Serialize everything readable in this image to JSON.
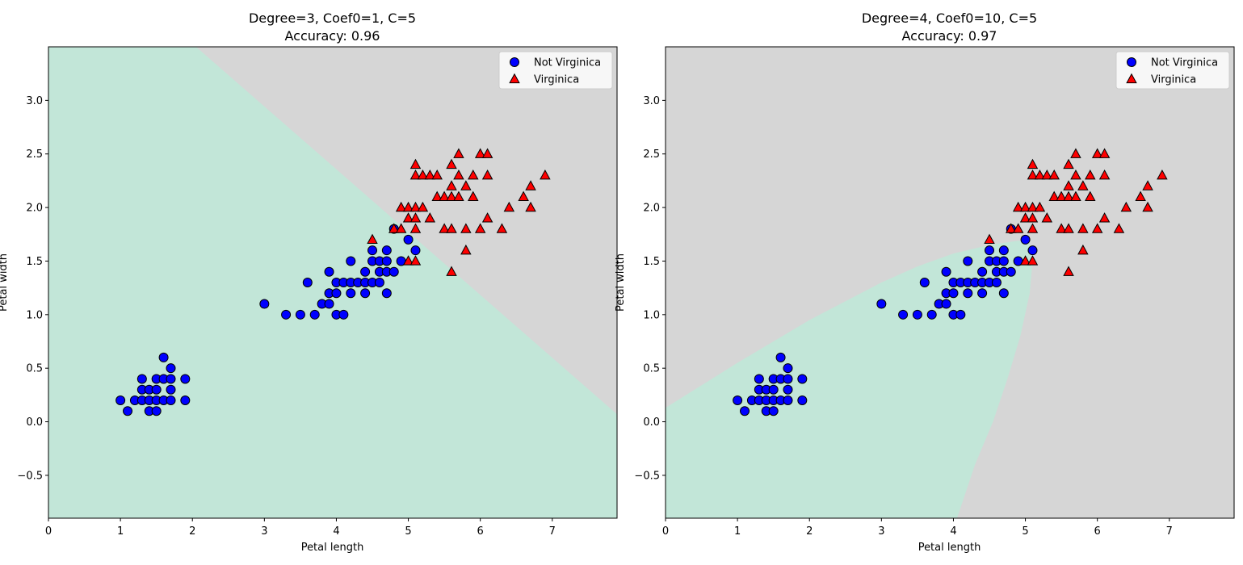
{
  "colors": {
    "region_not_virginica": "#c2e6d8",
    "region_virginica": "#d6d6d6",
    "not_virginica_marker": "#0000ff",
    "virginica_marker": "#ff0000",
    "marker_edge": "#000000"
  },
  "chart_data": [
    {
      "type": "scatter",
      "title": "Degree=3, Coef0=1, C=5",
      "subtitle": "Accuracy: 0.96",
      "xlabel": "Petal length",
      "ylabel": "Petal width",
      "xlim": [
        0,
        7.9
      ],
      "ylim": [
        -0.9,
        3.5
      ],
      "xticks": [
        0,
        1,
        2,
        3,
        4,
        5,
        6,
        7
      ],
      "yticks": [
        -0.5,
        0.0,
        0.5,
        1.0,
        1.5,
        2.0,
        2.5,
        3.0
      ],
      "legend_position": "top-right",
      "decision_boundary": {
        "shape": "line",
        "points": [
          [
            2.05,
            3.5
          ],
          [
            7.9,
            0.07
          ]
        ],
        "region_below": "Not Virginica",
        "region_above": "Virginica"
      },
      "series": [
        {
          "name": "Not Virginica",
          "marker": "circle",
          "points": [
            [
              1.0,
              0.2
            ],
            [
              1.1,
              0.1
            ],
            [
              1.2,
              0.2
            ],
            [
              1.3,
              0.2
            ],
            [
              1.3,
              0.3
            ],
            [
              1.3,
              0.4
            ],
            [
              1.4,
              0.1
            ],
            [
              1.4,
              0.2
            ],
            [
              1.4,
              0.3
            ],
            [
              1.5,
              0.1
            ],
            [
              1.5,
              0.2
            ],
            [
              1.5,
              0.3
            ],
            [
              1.5,
              0.4
            ],
            [
              1.6,
              0.2
            ],
            [
              1.6,
              0.4
            ],
            [
              1.6,
              0.6
            ],
            [
              1.7,
              0.2
            ],
            [
              1.7,
              0.3
            ],
            [
              1.7,
              0.4
            ],
            [
              1.7,
              0.5
            ],
            [
              1.9,
              0.2
            ],
            [
              1.9,
              0.4
            ],
            [
              3.0,
              1.1
            ],
            [
              3.3,
              1.0
            ],
            [
              3.5,
              1.0
            ],
            [
              3.6,
              1.3
            ],
            [
              3.7,
              1.0
            ],
            [
              3.8,
              1.1
            ],
            [
              3.9,
              1.1
            ],
            [
              3.9,
              1.2
            ],
            [
              3.9,
              1.4
            ],
            [
              4.0,
              1.0
            ],
            [
              4.0,
              1.2
            ],
            [
              4.0,
              1.3
            ],
            [
              4.1,
              1.0
            ],
            [
              4.1,
              1.3
            ],
            [
              4.2,
              1.2
            ],
            [
              4.2,
              1.3
            ],
            [
              4.2,
              1.5
            ],
            [
              4.3,
              1.3
            ],
            [
              4.4,
              1.2
            ],
            [
              4.4,
              1.3
            ],
            [
              4.4,
              1.4
            ],
            [
              4.5,
              1.3
            ],
            [
              4.5,
              1.5
            ],
            [
              4.5,
              1.6
            ],
            [
              4.6,
              1.3
            ],
            [
              4.6,
              1.4
            ],
            [
              4.6,
              1.5
            ],
            [
              4.7,
              1.2
            ],
            [
              4.7,
              1.4
            ],
            [
              4.7,
              1.5
            ],
            [
              4.7,
              1.6
            ],
            [
              4.8,
              1.4
            ],
            [
              4.8,
              1.8
            ],
            [
              4.9,
              1.5
            ],
            [
              5.0,
              1.7
            ],
            [
              5.1,
              1.6
            ]
          ]
        },
        {
          "name": "Virginica",
          "marker": "triangle",
          "points": [
            [
              4.5,
              1.7
            ],
            [
              4.8,
              1.8
            ],
            [
              4.9,
              1.8
            ],
            [
              4.9,
              2.0
            ],
            [
              5.0,
              1.5
            ],
            [
              5.0,
              1.9
            ],
            [
              5.0,
              2.0
            ],
            [
              5.1,
              1.5
            ],
            [
              5.1,
              1.8
            ],
            [
              5.1,
              1.9
            ],
            [
              5.1,
              2.0
            ],
            [
              5.1,
              2.3
            ],
            [
              5.1,
              2.4
            ],
            [
              5.2,
              2.0
            ],
            [
              5.2,
              2.3
            ],
            [
              5.3,
              1.9
            ],
            [
              5.3,
              2.3
            ],
            [
              5.4,
              2.1
            ],
            [
              5.4,
              2.3
            ],
            [
              5.5,
              1.8
            ],
            [
              5.5,
              2.1
            ],
            [
              5.6,
              1.4
            ],
            [
              5.6,
              1.8
            ],
            [
              5.6,
              2.1
            ],
            [
              5.6,
              2.2
            ],
            [
              5.6,
              2.4
            ],
            [
              5.7,
              2.1
            ],
            [
              5.7,
              2.3
            ],
            [
              5.7,
              2.5
            ],
            [
              5.8,
              1.6
            ],
            [
              5.8,
              1.8
            ],
            [
              5.8,
              2.2
            ],
            [
              5.9,
              2.1
            ],
            [
              5.9,
              2.3
            ],
            [
              6.0,
              1.8
            ],
            [
              6.0,
              2.5
            ],
            [
              6.1,
              1.9
            ],
            [
              6.1,
              2.3
            ],
            [
              6.1,
              2.5
            ],
            [
              6.3,
              1.8
            ],
            [
              6.4,
              2.0
            ],
            [
              6.6,
              2.1
            ],
            [
              6.7,
              2.0
            ],
            [
              6.7,
              2.2
            ],
            [
              6.9,
              2.3
            ]
          ]
        }
      ]
    },
    {
      "type": "scatter",
      "title": "Degree=4, Coef0=10, C=5",
      "subtitle": "Accuracy: 0.97",
      "xlabel": "Petal length",
      "ylabel": "Petal width",
      "xlim": [
        0,
        7.9
      ],
      "ylim": [
        -0.9,
        3.5
      ],
      "xticks": [
        0,
        1,
        2,
        3,
        4,
        5,
        6,
        7
      ],
      "yticks": [
        -0.5,
        0.0,
        0.5,
        1.0,
        1.5,
        2.0,
        2.5,
        3.0
      ],
      "legend_position": "top-right",
      "decision_boundary": {
        "shape": "polygon",
        "region_inside": "Not Virginica",
        "region_outside": "Virginica",
        "points": [
          [
            0,
            -0.9
          ],
          [
            0,
            0.13
          ],
          [
            1.0,
            0.55
          ],
          [
            2.0,
            0.95
          ],
          [
            3.0,
            1.3
          ],
          [
            3.5,
            1.45
          ],
          [
            4.0,
            1.57
          ],
          [
            4.5,
            1.65
          ],
          [
            4.9,
            1.69
          ],
          [
            5.05,
            1.68
          ],
          [
            5.1,
            1.5
          ],
          [
            5.06,
            1.2
          ],
          [
            4.93,
            0.8
          ],
          [
            4.75,
            0.4
          ],
          [
            4.55,
            0.0
          ],
          [
            4.3,
            -0.4
          ],
          [
            4.05,
            -0.9
          ]
        ]
      },
      "series": [
        {
          "name": "Not Virginica",
          "marker": "circle",
          "points": [
            [
              1.0,
              0.2
            ],
            [
              1.1,
              0.1
            ],
            [
              1.2,
              0.2
            ],
            [
              1.3,
              0.2
            ],
            [
              1.3,
              0.3
            ],
            [
              1.3,
              0.4
            ],
            [
              1.4,
              0.1
            ],
            [
              1.4,
              0.2
            ],
            [
              1.4,
              0.3
            ],
            [
              1.5,
              0.1
            ],
            [
              1.5,
              0.2
            ],
            [
              1.5,
              0.3
            ],
            [
              1.5,
              0.4
            ],
            [
              1.6,
              0.2
            ],
            [
              1.6,
              0.4
            ],
            [
              1.6,
              0.6
            ],
            [
              1.7,
              0.2
            ],
            [
              1.7,
              0.3
            ],
            [
              1.7,
              0.4
            ],
            [
              1.7,
              0.5
            ],
            [
              1.9,
              0.2
            ],
            [
              1.9,
              0.4
            ],
            [
              3.0,
              1.1
            ],
            [
              3.3,
              1.0
            ],
            [
              3.5,
              1.0
            ],
            [
              3.6,
              1.3
            ],
            [
              3.7,
              1.0
            ],
            [
              3.8,
              1.1
            ],
            [
              3.9,
              1.1
            ],
            [
              3.9,
              1.2
            ],
            [
              3.9,
              1.4
            ],
            [
              4.0,
              1.0
            ],
            [
              4.0,
              1.2
            ],
            [
              4.0,
              1.3
            ],
            [
              4.1,
              1.0
            ],
            [
              4.1,
              1.3
            ],
            [
              4.2,
              1.2
            ],
            [
              4.2,
              1.3
            ],
            [
              4.2,
              1.5
            ],
            [
              4.3,
              1.3
            ],
            [
              4.4,
              1.2
            ],
            [
              4.4,
              1.3
            ],
            [
              4.4,
              1.4
            ],
            [
              4.5,
              1.3
            ],
            [
              4.5,
              1.5
            ],
            [
              4.5,
              1.6
            ],
            [
              4.6,
              1.3
            ],
            [
              4.6,
              1.4
            ],
            [
              4.6,
              1.5
            ],
            [
              4.7,
              1.2
            ],
            [
              4.7,
              1.4
            ],
            [
              4.7,
              1.5
            ],
            [
              4.7,
              1.6
            ],
            [
              4.8,
              1.4
            ],
            [
              4.8,
              1.8
            ],
            [
              4.9,
              1.5
            ],
            [
              5.0,
              1.7
            ],
            [
              5.1,
              1.6
            ]
          ]
        },
        {
          "name": "Virginica",
          "marker": "triangle",
          "points": [
            [
              4.5,
              1.7
            ],
            [
              4.8,
              1.8
            ],
            [
              4.9,
              1.8
            ],
            [
              4.9,
              2.0
            ],
            [
              5.0,
              1.5
            ],
            [
              5.0,
              1.9
            ],
            [
              5.0,
              2.0
            ],
            [
              5.1,
              1.5
            ],
            [
              5.1,
              1.8
            ],
            [
              5.1,
              1.9
            ],
            [
              5.1,
              2.0
            ],
            [
              5.1,
              2.3
            ],
            [
              5.1,
              2.4
            ],
            [
              5.2,
              2.0
            ],
            [
              5.2,
              2.3
            ],
            [
              5.3,
              1.9
            ],
            [
              5.3,
              2.3
            ],
            [
              5.4,
              2.1
            ],
            [
              5.4,
              2.3
            ],
            [
              5.5,
              1.8
            ],
            [
              5.5,
              2.1
            ],
            [
              5.6,
              1.4
            ],
            [
              5.6,
              1.8
            ],
            [
              5.6,
              2.1
            ],
            [
              5.6,
              2.2
            ],
            [
              5.6,
              2.4
            ],
            [
              5.7,
              2.1
            ],
            [
              5.7,
              2.3
            ],
            [
              5.7,
              2.5
            ],
            [
              5.8,
              1.6
            ],
            [
              5.8,
              1.8
            ],
            [
              5.8,
              2.2
            ],
            [
              5.9,
              2.1
            ],
            [
              5.9,
              2.3
            ],
            [
              6.0,
              1.8
            ],
            [
              6.0,
              2.5
            ],
            [
              6.1,
              1.9
            ],
            [
              6.1,
              2.3
            ],
            [
              6.1,
              2.5
            ],
            [
              6.3,
              1.8
            ],
            [
              6.4,
              2.0
            ],
            [
              6.6,
              2.1
            ],
            [
              6.7,
              2.0
            ],
            [
              6.7,
              2.2
            ],
            [
              6.9,
              2.3
            ]
          ]
        }
      ]
    }
  ]
}
